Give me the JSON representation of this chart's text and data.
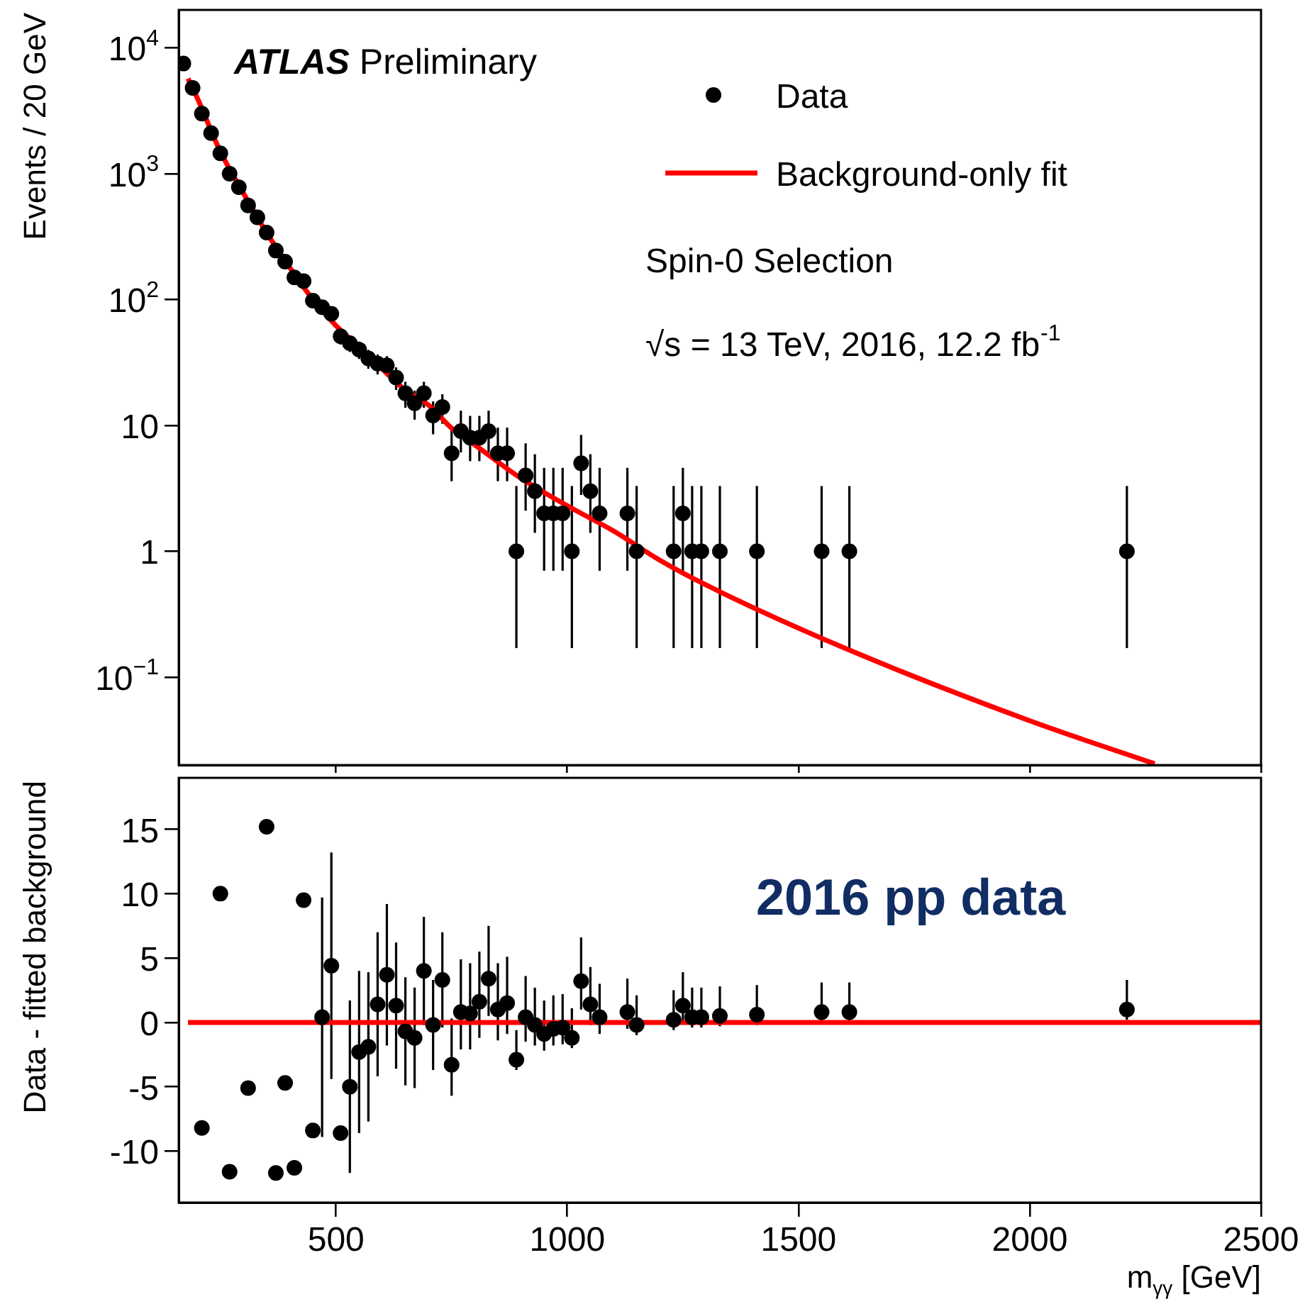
{
  "chart_data": [
    {
      "type": "scatter",
      "ylabel": "Events / 20 GeV",
      "log": "y",
      "xlim": [
        160,
        2500
      ],
      "xticks": [
        500,
        1000,
        1500,
        2000,
        2500
      ],
      "ylim": [
        0.02,
        20000
      ],
      "yticks": [
        {
          "value": 10000,
          "label": "10$^{4}$"
        },
        {
          "value": 1000,
          "label": "10$^{3}$"
        },
        {
          "value": 100,
          "label": "10$^{2}$"
        },
        10,
        1,
        {
          "value": 0.1,
          "label": "10$^{−1}$"
        }
      ],
      "tick_labels": "y",
      "legend": "top right",
      "marker": "circle",
      "annotations": [
        "ATLAS Preliminary",
        "Spin-0 Selection",
        "√s = 13 TeV, 2016, 12.2 fb$^{-1}$"
      ],
      "series": [
        {
          "name": "Data",
          "color": "#000000",
          "x": [
            170,
            190,
            210,
            230,
            250,
            270,
            290,
            310,
            330,
            350,
            370,
            390,
            410,
            430,
            450,
            470,
            490,
            510,
            530,
            550,
            570,
            590,
            610,
            630,
            650,
            670,
            690,
            710,
            730,
            750,
            770,
            790,
            810,
            830,
            850,
            870,
            890,
            910,
            930,
            950,
            970,
            990,
            1010,
            1030,
            1050,
            1070,
            1130,
            1150,
            1230,
            1250,
            1270,
            1290,
            1330,
            1410,
            1550,
            1610,
            2210
          ],
          "values": [
            7500,
            4800,
            3000,
            2100,
            1450,
            1000,
            780,
            560,
            450,
            340,
            245,
            200,
            150,
            140,
            98,
            87,
            77,
            51,
            45,
            40,
            34,
            31,
            30,
            24,
            18,
            15,
            18,
            12,
            14,
            6,
            9,
            8,
            8,
            9,
            6,
            6,
            1,
            4,
            3,
            2,
            2,
            2,
            1,
            5,
            3,
            2,
            2,
            1,
            1,
            2,
            1,
            1,
            1,
            1,
            1,
            1,
            1
          ],
          "errors": [
            87,
            69,
            55,
            46,
            38,
            32,
            28,
            24,
            21,
            18,
            16,
            14,
            12,
            12,
            10,
            9.3,
            8.8,
            7.1,
            6.7,
            6.3,
            5.8,
            5.6,
            5.5,
            4.9,
            4.2,
            3.9,
            4.2,
            3.5,
            3.7,
            [
              3.6,
              9.6
            ],
            [
              6.1,
              13.1
            ],
            [
              5.2,
              11.9
            ],
            [
              5.2,
              11.9
            ],
            [
              6.1,
              13.1
            ],
            [
              3.6,
              9.6
            ],
            [
              3.6,
              9.6
            ],
            [
              0.17,
              3.3
            ],
            [
              2.1,
              7.2
            ],
            [
              1.4,
              5.9
            ],
            [
              0.7,
              4.6
            ],
            [
              0.7,
              4.6
            ],
            [
              0.7,
              4.6
            ],
            [
              0.17,
              3.3
            ],
            [
              2.8,
              8.4
            ],
            [
              1.4,
              5.9
            ],
            [
              0.7,
              4.6
            ],
            [
              0.7,
              4.6
            ],
            [
              0.17,
              3.3
            ],
            [
              0.17,
              3.3
            ],
            [
              0.7,
              4.6
            ],
            [
              0.17,
              3.3
            ],
            [
              0.17,
              3.3
            ],
            [
              0.17,
              3.3
            ],
            [
              0.17,
              3.3
            ],
            [
              0.17,
              3.3
            ],
            [
              0.17,
              3.3
            ],
            [
              0.17,
              3.3
            ]
          ]
        },
        {
          "name": "Background-only fit",
          "type": "line",
          "marker": "none",
          "color": "#ff0000",
          "x": [
            180,
            200,
            250,
            300,
            350,
            400,
            450,
            500,
            550,
            600,
            650,
            700,
            750,
            800,
            900,
            1000,
            1100,
            1200,
            1300,
            1600,
            2000,
            2270
          ],
          "values": [
            5700,
            4000,
            1500,
            700,
            340,
            180,
            100,
            62,
            42,
            28,
            19,
            14.5,
            9.5,
            7,
            3.8,
            2.3,
            1.45,
            0.85,
            0.54,
            0.17,
            0.045,
            0.0205
          ]
        }
      ]
    },
    {
      "type": "scatter",
      "xlabel": "m$_{γγ}$ [GeV]",
      "ylabel": "Data - fitted background",
      "xlim": [
        160,
        2500
      ],
      "xticks": [
        500,
        1000,
        1500,
        2000,
        2500
      ],
      "ylim": [
        -14,
        19
      ],
      "yticks": [
        -10,
        -5,
        0,
        5,
        10,
        15
      ],
      "marker": "circle",
      "annotations": [
        "2016 pp data"
      ],
      "series": [
        {
          "color": "#000000",
          "x": [
            210,
            250,
            270,
            310,
            350,
            370,
            390,
            410,
            430,
            450,
            470,
            490,
            510,
            530,
            550,
            570,
            590,
            610,
            630,
            650,
            670,
            690,
            710,
            730,
            750,
            770,
            790,
            810,
            830,
            850,
            870,
            890,
            910,
            930,
            950,
            970,
            990,
            1010,
            1030,
            1050,
            1070,
            1130,
            1150,
            1230,
            1250,
            1270,
            1290,
            1330,
            1410,
            1550,
            1610,
            2210
          ],
          "values": [
            -8.2,
            10.0,
            -11.6,
            -5.1,
            15.2,
            -11.7,
            -4.7,
            -11.3,
            9.5,
            -8.4,
            0.4,
            4.4,
            -8.6,
            -5.0,
            -2.3,
            -1.9,
            1.4,
            3.7,
            1.3,
            -0.7,
            -1.2,
            4.0,
            -0.2,
            3.3,
            -3.3,
            0.8,
            0.7,
            1.6,
            3.4,
            1.0,
            1.5,
            -2.9,
            0.4,
            -0.2,
            -0.9,
            -0.5,
            -0.4,
            -1.2,
            3.2,
            1.4,
            0.4,
            0.8,
            -0.2,
            0.2,
            1.3,
            0.4,
            0.4,
            0.5,
            0.6,
            0.8,
            0.8,
            1.0
          ],
          "errors": [
            null,
            null,
            null,
            null,
            null,
            null,
            null,
            null,
            null,
            null,
            9.3,
            8.8,
            null,
            6.7,
            6.3,
            5.8,
            5.6,
            5.5,
            4.9,
            4.2,
            3.9,
            4.2,
            3.5,
            3.7,
            [
              -5.7,
              0.3
            ],
            [
              -2.1,
              4.9
            ],
            [
              -2.1,
              4.6
            ],
            [
              -1.2,
              5.5
            ],
            [
              0.5,
              7.5
            ],
            [
              -1.4,
              4.6
            ],
            [
              -0.9,
              5.1
            ],
            [
              -3.7,
              -0.6
            ],
            [
              -1.5,
              3.6
            ],
            [
              -1.8,
              2.7
            ],
            [
              -2.2,
              1.7
            ],
            [
              -1.8,
              2.1
            ],
            [
              -1.7,
              2.2
            ],
            [
              -2.0,
              1.1
            ],
            [
              1.0,
              6.6
            ],
            [
              -0.2,
              4.3
            ],
            [
              -0.9,
              3.0
            ],
            [
              -0.5,
              3.4
            ],
            [
              -1.0,
              2.1
            ],
            [
              -0.6,
              2.5
            ],
            [
              0.0,
              3.9
            ],
            [
              -0.4,
              2.7
            ],
            [
              -0.4,
              2.7
            ],
            [
              -0.3,
              2.8
            ],
            [
              -0.2,
              2.9
            ],
            [
              0.0,
              3.1
            ],
            [
              0.0,
              3.1
            ],
            [
              0.2,
              3.3
            ]
          ]
        },
        {
          "type": "line",
          "marker": "none",
          "color": "#ff0000",
          "x": [
            180,
            2500
          ],
          "values": [
            0,
            0
          ]
        }
      ]
    }
  ]
}
